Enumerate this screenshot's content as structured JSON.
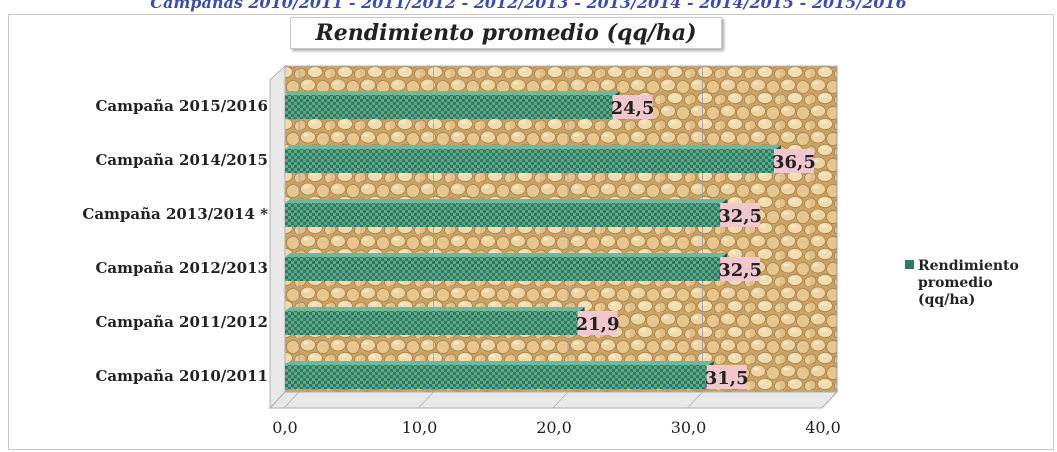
{
  "header": {
    "caption": "Campañas 2010/2011 - 2011/2012 - 2012/2013 - 2013/2014 - 2014/2015 - 2015/2016"
  },
  "chart_data": {
    "type": "bar",
    "orientation": "horizontal",
    "title": "Rendimiento promedio (qq/ha)",
    "categories": [
      "Campaña 2010/2011",
      "Campaña 2011/2012",
      "Campaña 2012/2013",
      "Campaña 2013/2014 *",
      "Campaña 2014/2015",
      "Campaña 2015/2016"
    ],
    "series": [
      {
        "name": "Rendimiento promedio (qq/ha)",
        "values": [
          31.5,
          21.9,
          32.5,
          32.5,
          36.5,
          24.5
        ],
        "value_labels": [
          "31,5",
          "21,9",
          "32,5",
          "32,5",
          "36,5",
          "24,5"
        ]
      }
    ],
    "xlim": [
      0,
      40
    ],
    "xticks": [
      "0,0",
      "10,0",
      "20,0",
      "30,0",
      "40,0"
    ],
    "grid": true,
    "legend_position": "right",
    "colors": {
      "bar": "#2e7a62",
      "bar_highlight": "#5da88b",
      "label_bg": "#f0c6cf",
      "plot_background": "#d8b47c"
    }
  },
  "legend": {
    "line1": "Rendimiento",
    "line2": "promedio",
    "line3": "(qq/ha)"
  }
}
